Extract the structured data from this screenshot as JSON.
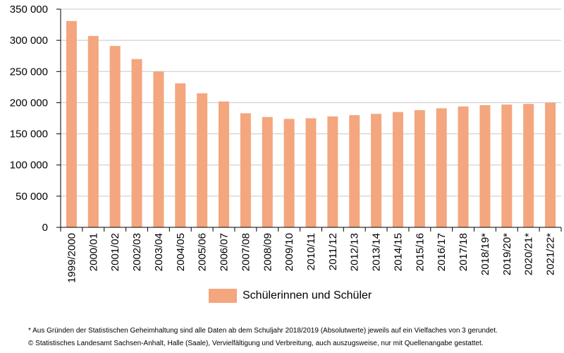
{
  "chart_data": {
    "type": "bar",
    "title": "",
    "xlabel": "",
    "ylabel": "",
    "ylim": [
      0,
      350000
    ],
    "yticks": [
      0,
      50000,
      100000,
      150000,
      200000,
      250000,
      300000,
      350000
    ],
    "ytick_labels": [
      "0",
      "50 000",
      "100 000",
      "150 000",
      "200 000",
      "250 000",
      "300 000",
      "350 000"
    ],
    "grid": "horizontal",
    "legend_position": "bottom",
    "bar_color": "#F4A67E",
    "categories": [
      "1999/2000",
      "2000/01",
      "2001/02",
      "2002/03",
      "2003/04",
      "2004/05",
      "2005/06",
      "2006/07",
      "2007/08",
      "2008/09",
      "2009/10",
      "2010/11",
      "2011/12",
      "2012/13",
      "2013/14",
      "2014/15",
      "2015/16",
      "2016/17",
      "2017/18",
      "2018/19*",
      "2019/20*",
      "2020/21*",
      "2021/22*"
    ],
    "series": [
      {
        "name": "Schülerinnen und Schüler",
        "values": [
          331000,
          307000,
          291000,
          270000,
          250000,
          231000,
          215000,
          202000,
          183000,
          177000,
          174000,
          175000,
          178000,
          180000,
          182000,
          185000,
          188000,
          191000,
          194000,
          196000,
          197000,
          198000,
          200000
        ]
      }
    ]
  },
  "footnotes": [
    "* Aus Gründen der Statistischen Geheimhaltung sind alle Daten ab dem Schuljahr 2018/2019 (Absolutwerte) jeweils auf ein Vielfaches von 3 gerundet.",
    "© Statistisches Landesamt Sachsen-Anhalt, Halle (Saale), Vervielfältigung und Verbreitung, auch auszugsweise, nur mit Quellenangabe gestattet."
  ]
}
